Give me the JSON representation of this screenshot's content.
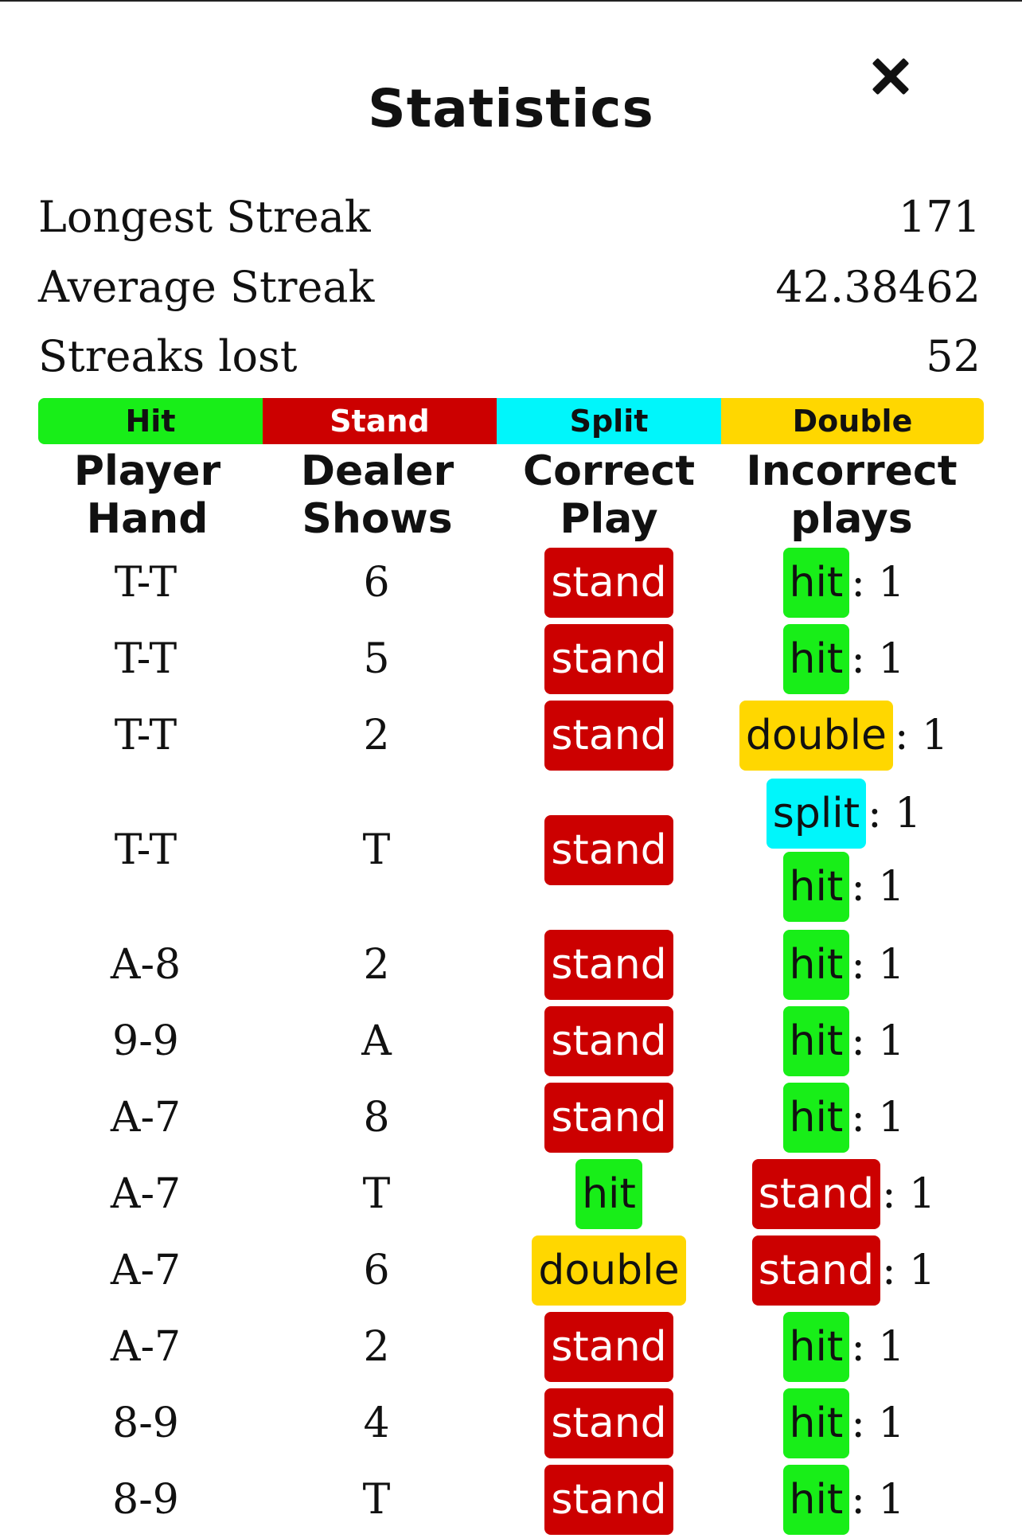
{
  "header": {
    "title": "Statistics"
  },
  "stats": [
    {
      "label": "Longest Streak",
      "value": "171"
    },
    {
      "label": "Average Streak",
      "value": "42.38462"
    },
    {
      "label": "Streaks lost",
      "value": "52"
    }
  ],
  "legend": {
    "hit": "Hit",
    "stand": "Stand",
    "split": "Split",
    "double": "Double"
  },
  "columns": {
    "player_hand": "Player Hand",
    "dealer_shows": "Dealer Shows",
    "correct_play": "Correct Play",
    "incorrect_plays": "Incorrect plays"
  },
  "colors": {
    "hit": "#18ee18",
    "stand": "#cc0000",
    "split": "#00f6fb",
    "double": "#ffd700"
  },
  "rows": [
    {
      "player": "T-T",
      "dealer": "6",
      "correct": "stand",
      "incorrect": [
        {
          "play": "hit",
          "count": ": 1"
        }
      ]
    },
    {
      "player": "T-T",
      "dealer": "5",
      "correct": "stand",
      "incorrect": [
        {
          "play": "hit",
          "count": ": 1"
        }
      ]
    },
    {
      "player": "T-T",
      "dealer": "2",
      "correct": "stand",
      "incorrect": [
        {
          "play": "double",
          "count": ": 1"
        }
      ]
    },
    {
      "player": "T-T",
      "dealer": "T",
      "correct": "stand",
      "incorrect": [
        {
          "play": "split",
          "count": ": 1"
        },
        {
          "play": "hit",
          "count": ": 1"
        }
      ]
    },
    {
      "player": "A-8",
      "dealer": "2",
      "correct": "stand",
      "incorrect": [
        {
          "play": "hit",
          "count": ": 1"
        }
      ]
    },
    {
      "player": "9-9",
      "dealer": "A",
      "correct": "stand",
      "incorrect": [
        {
          "play": "hit",
          "count": ": 1"
        }
      ]
    },
    {
      "player": "A-7",
      "dealer": "8",
      "correct": "stand",
      "incorrect": [
        {
          "play": "hit",
          "count": ": 1"
        }
      ]
    },
    {
      "player": "A-7",
      "dealer": "T",
      "correct": "hit",
      "incorrect": [
        {
          "play": "stand",
          "count": ": 1"
        }
      ]
    },
    {
      "player": "A-7",
      "dealer": "6",
      "correct": "double",
      "incorrect": [
        {
          "play": "stand",
          "count": ": 1"
        }
      ]
    },
    {
      "player": "A-7",
      "dealer": "2",
      "correct": "stand",
      "incorrect": [
        {
          "play": "hit",
          "count": ": 1"
        }
      ]
    },
    {
      "player": "8-9",
      "dealer": "4",
      "correct": "stand",
      "incorrect": [
        {
          "play": "hit",
          "count": ": 1"
        }
      ]
    },
    {
      "player": "8-9",
      "dealer": "T",
      "correct": "stand",
      "incorrect": [
        {
          "play": "hit",
          "count": ": 1"
        }
      ]
    }
  ]
}
